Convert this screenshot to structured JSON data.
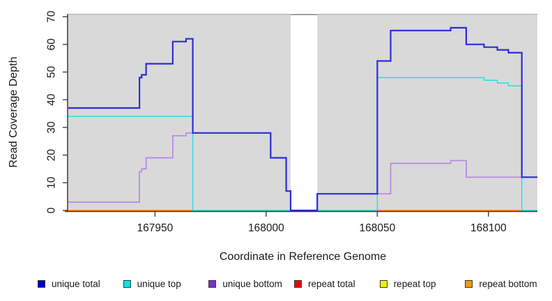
{
  "figure": {
    "xlabel": "Coordinate in Reference Genome",
    "ylabel": "Read Coverage Depth"
  },
  "legend": {
    "items": [
      {
        "label": "unique total",
        "color": "#0000cc"
      },
      {
        "label": "unique top",
        "color": "#00e6ee"
      },
      {
        "label": "unique bottom",
        "color": "#7c2fd1"
      },
      {
        "label": "repeat total",
        "color": "#ee0000"
      },
      {
        "label": "repeat top",
        "color": "#f2ee00"
      },
      {
        "label": "repeat bottom",
        "color": "#ff9900"
      }
    ]
  },
  "chart_data": {
    "type": "line",
    "line_style": "step-after",
    "title": "",
    "xlabel": "Coordinate in Reference Genome",
    "ylabel": "Read Coverage Depth",
    "xlim": [
      167911,
      168122
    ],
    "ylim": [
      0,
      71
    ],
    "x_ticks": [
      167950,
      168000,
      168050,
      168100
    ],
    "y_ticks": [
      0,
      10,
      20,
      30,
      40,
      50,
      60,
      70
    ],
    "panel_background": "#d9d9d9",
    "panel_top_border": "#b3b3b3",
    "axis_color": "#333333",
    "grid": false,
    "legend_position": "bottom",
    "gap_region": {
      "x_start": 168011,
      "x_end": 168023,
      "fill": "#ffffff",
      "cap_color": "#8c8c8c"
    },
    "series": [
      {
        "name": "repeat total",
        "color": "#cc0000",
        "width": 1.6,
        "points": [
          [
            167911,
            0
          ],
          [
            168122,
            0
          ]
        ]
      },
      {
        "name": "repeat top",
        "color": "#e8e800",
        "width": 1.6,
        "points": [
          [
            167911,
            0
          ],
          [
            168122,
            0
          ]
        ]
      },
      {
        "name": "repeat bottom",
        "color": "#ff9621",
        "width": 2,
        "points": [
          [
            167911,
            0
          ],
          [
            168122,
            0
          ]
        ]
      },
      {
        "name": "unique bottom",
        "color": "#b688e2",
        "width": 1.7,
        "points": [
          [
            167911,
            3
          ],
          [
            167943,
            14
          ],
          [
            167944,
            15
          ],
          [
            167946,
            19
          ],
          [
            167958,
            27
          ],
          [
            167964,
            28
          ],
          [
            168002,
            19
          ],
          [
            168009,
            7
          ],
          [
            168011,
            0
          ],
          [
            168023,
            6
          ],
          [
            168056,
            17
          ],
          [
            168083,
            18
          ],
          [
            168090,
            12
          ],
          [
            168122,
            12
          ]
        ]
      },
      {
        "name": "unique top",
        "color": "#2edde4",
        "width": 1.5,
        "points": [
          [
            167911,
            34
          ],
          [
            167967,
            0
          ],
          [
            168050,
            48
          ],
          [
            168098,
            47
          ],
          [
            168104,
            46
          ],
          [
            168109,
            45
          ],
          [
            168115,
            0
          ],
          [
            168122,
            0
          ]
        ]
      },
      {
        "name": "unique total",
        "color": "#2b2bdb",
        "width": 2.2,
        "points": [
          [
            167911,
            37
          ],
          [
            167943,
            48
          ],
          [
            167944,
            49
          ],
          [
            167946,
            53
          ],
          [
            167958,
            61
          ],
          [
            167964,
            62
          ],
          [
            167967,
            28
          ],
          [
            168002,
            19
          ],
          [
            168009,
            7
          ],
          [
            168011,
            0
          ],
          [
            168023,
            6
          ],
          [
            168050,
            54
          ],
          [
            168056,
            65
          ],
          [
            168083,
            66
          ],
          [
            168090,
            60
          ],
          [
            168098,
            59
          ],
          [
            168104,
            58
          ],
          [
            168109,
            57
          ],
          [
            168115,
            12
          ],
          [
            168122,
            12
          ]
        ]
      }
    ],
    "zero_line_overlap_segments": [
      {
        "x_start": 167967,
        "x_end": 168050,
        "color": "#90d190"
      },
      {
        "x_start": 168115,
        "x_end": 168122,
        "color": "#90d190"
      }
    ]
  }
}
